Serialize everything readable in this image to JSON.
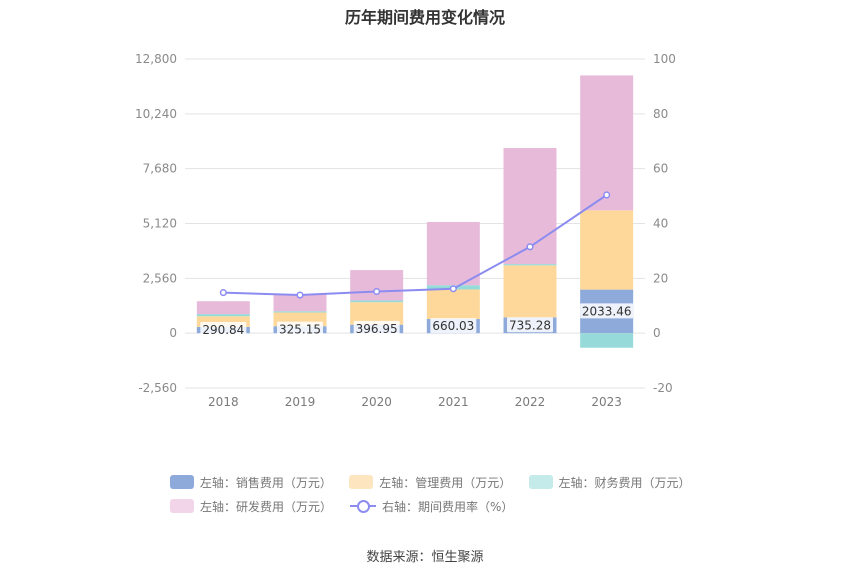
{
  "chart_data": {
    "type": "bar",
    "title": "历年期间费用变化情况",
    "categories": [
      "2018",
      "2019",
      "2020",
      "2021",
      "2022",
      "2023"
    ],
    "y_left": {
      "ylim": [
        -2560,
        12800
      ],
      "ticks": [
        "12,800",
        "10,240",
        "7,680",
        "5,120",
        "2,560",
        "0",
        "-2,560"
      ]
    },
    "y_right": {
      "ylim": [
        -20,
        100
      ],
      "ticks": [
        "100",
        "80",
        "60",
        "40",
        "20",
        "0",
        "-20"
      ]
    },
    "grid": true,
    "legend_position": "bottom",
    "series": [
      {
        "name": "左轴：销售费用（万元）",
        "axis": "left",
        "stacked": true,
        "color": "#8eaadb",
        "values": [
          290.84,
          325.15,
          396.95,
          660.03,
          735.28,
          2033.46
        ],
        "labels": [
          "290.84",
          "325.15",
          "396.95",
          "660.03",
          "735.28",
          "2033.46"
        ]
      },
      {
        "name": "左轴：管理费用（万元）",
        "axis": "left",
        "stacked": true,
        "color": "#fdd89a",
        "values": [
          500,
          640,
          1050,
          1380,
          2430,
          3700
        ]
      },
      {
        "name": "左轴：财务费用（万元）",
        "axis": "left",
        "stacked": true,
        "color": "#96dbd9",
        "values": [
          100,
          60,
          80,
          200,
          60,
          -680
        ]
      },
      {
        "name": "左轴：研发费用（万元）",
        "axis": "left",
        "stacked": true,
        "color": "#e8bada",
        "values": [
          600,
          800,
          1420,
          2950,
          5420,
          6300
        ]
      },
      {
        "name": "右轴：期间费用率（%）",
        "axis": "right",
        "type": "line",
        "color": "#8c8cf0",
        "values": [
          14.8,
          13.9,
          15.2,
          16.2,
          31.5,
          50.4
        ]
      }
    ]
  },
  "legend": [
    {
      "label": "左轴：销售费用（万元）",
      "color": "#8eaadb"
    },
    {
      "label": "左轴：管理费用（万元）",
      "color": "#fdd89a"
    },
    {
      "label": "左轴：财务费用（万元）",
      "color": "#c4ebe9"
    },
    {
      "label": "左轴：研发费用（万元）",
      "color": "#f3d5ea"
    },
    {
      "label": "右轴：期间费用率（%）",
      "color": "#8c8cf0"
    }
  ],
  "source": "数据来源：恒生聚源"
}
